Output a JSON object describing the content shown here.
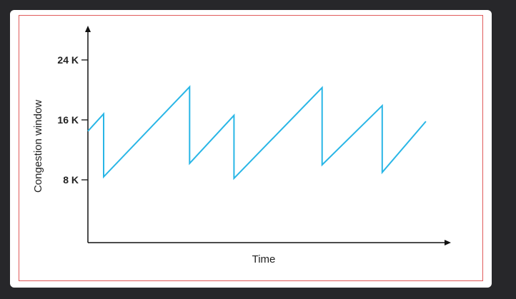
{
  "chart_data": {
    "type": "line",
    "title": "",
    "xlabel": "Time",
    "ylabel": "Congestion window",
    "y_ticks": [
      {
        "label": "8 K",
        "value": 8
      },
      {
        "label": "16 K",
        "value": 16
      },
      {
        "label": "24 K",
        "value": 24
      }
    ],
    "ylim": [
      0,
      26
    ],
    "xlim": [
      0,
      50
    ],
    "grid": false,
    "line_color": "#29b6e6",
    "series": [
      {
        "x": [
          0,
          2.2,
          2.2,
          14.2,
          14.2,
          20.4,
          20.4,
          32.7,
          32.7,
          41.1,
          41.1,
          47.2
        ],
        "y": [
          14.5,
          16.8,
          8.4,
          20.4,
          10.2,
          16.6,
          8.2,
          20.3,
          10.0,
          17.9,
          9.0,
          15.8
        ]
      }
    ]
  }
}
